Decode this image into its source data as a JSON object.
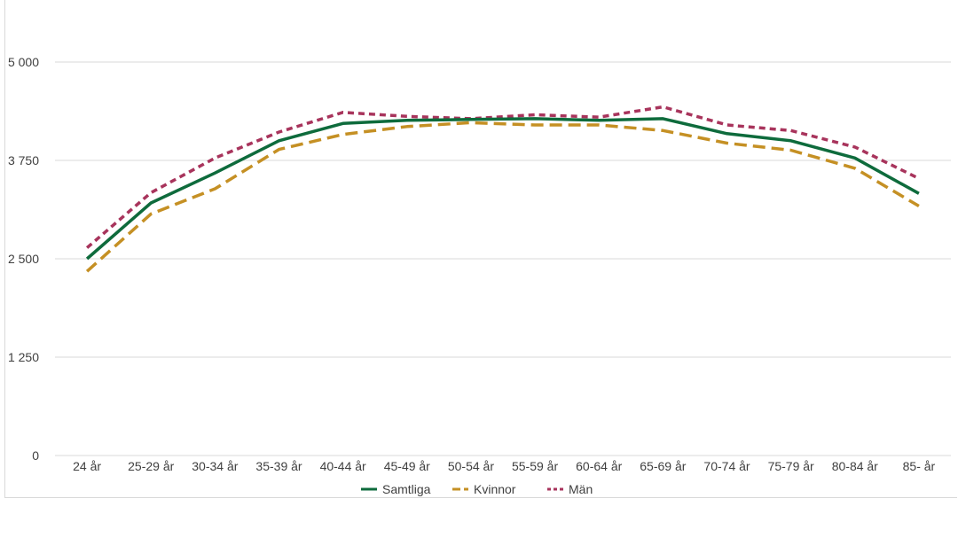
{
  "chart_data": {
    "type": "line",
    "title": "",
    "xlabel": "",
    "ylabel": "",
    "categories": [
      "24 år",
      "25-29 år",
      "30-34 år",
      "35-39 år",
      "40-44 år",
      "45-49 år",
      "50-54 år",
      "55-59 år",
      "60-64 år",
      "65-69 år",
      "70-74 år",
      "75-79 år",
      "80-84 år",
      "85- år"
    ],
    "ylim": [
      0,
      5000
    ],
    "yticks": [
      0,
      1250,
      2500,
      3750,
      5000
    ],
    "ytick_labels": [
      "0",
      "1 250",
      "2 500",
      "3 750",
      "5 000"
    ],
    "grid": true,
    "legend_position": "bottom",
    "series": [
      {
        "name": "Samtliga",
        "color": "#0e6b3c",
        "style": "solid",
        "values": [
          2500,
          3210,
          3590,
          4000,
          4220,
          4260,
          4270,
          4280,
          4260,
          4280,
          4090,
          4000,
          3780,
          3330
        ]
      },
      {
        "name": "Kvinnor",
        "color": "#c59024",
        "style": "long-dash",
        "values": [
          2340,
          3070,
          3390,
          3890,
          4080,
          4180,
          4230,
          4200,
          4200,
          4130,
          3970,
          3880,
          3650,
          3170
        ]
      },
      {
        "name": "Män",
        "color": "#a8345c",
        "style": "short-dash",
        "values": [
          2640,
          3340,
          3780,
          4110,
          4360,
          4310,
          4280,
          4330,
          4300,
          4430,
          4200,
          4130,
          3920,
          3520
        ]
      }
    ]
  }
}
